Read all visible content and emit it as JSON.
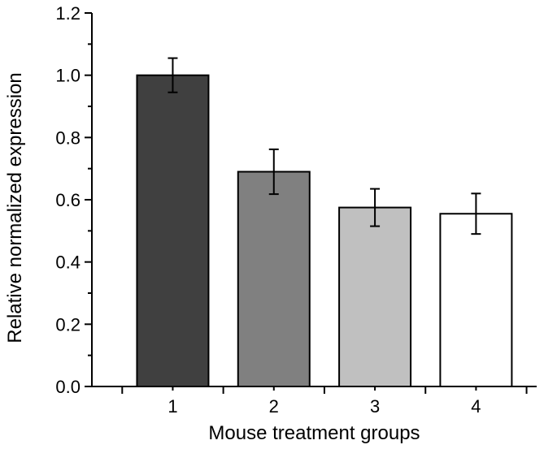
{
  "chart_data": {
    "type": "bar",
    "title": "",
    "xlabel": "Mouse treatment groups",
    "ylabel": "Relative normalized expression",
    "categories": [
      "1",
      "2",
      "3",
      "4"
    ],
    "values": [
      1.0,
      0.69,
      0.575,
      0.555
    ],
    "errors": [
      0.055,
      0.072,
      0.06,
      0.065
    ],
    "bar_colors": [
      "#404040",
      "#808080",
      "#c0c0c0",
      "#ffffff"
    ],
    "ylim": [
      0,
      1.2
    ],
    "yticks": [
      "0.0",
      "0.2",
      "0.4",
      "0.6",
      "0.8",
      "1.0",
      "1.2"
    ],
    "grid": false,
    "legend": "none"
  }
}
